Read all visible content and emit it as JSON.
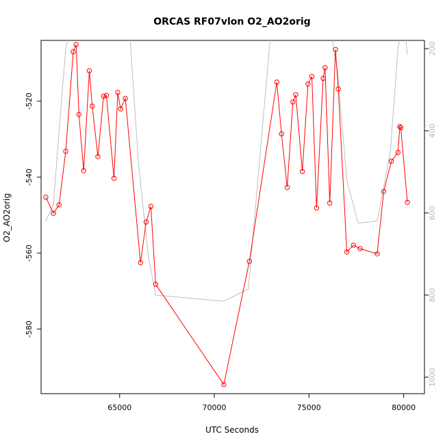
{
  "chart_data": {
    "type": "line",
    "title": "ORCAS RF07vlon O2_AO2orig",
    "xlabel": "UTC Seconds",
    "ylabel": "O2_AO2orig",
    "xlim": [
      60850,
      81100
    ],
    "ylim": [
      -597,
      -504
    ],
    "x_ticks": [
      65000,
      70000,
      75000,
      80000
    ],
    "y_ticks": [
      -520,
      -540,
      -560,
      -580
    ],
    "y2lim": [
      1040,
      180
    ],
    "y2_ticks": [
      200,
      400,
      600,
      800,
      1000
    ],
    "grid": false,
    "colors": {
      "primary": "#ff0000",
      "secondary": "#bebebe"
    },
    "series": [
      {
        "axis": "left",
        "color": "#ff0000",
        "marker": "open-circle",
        "points": [
          [
            61100,
            -545.3
          ],
          [
            61500,
            -549.5
          ],
          [
            61800,
            -547.3
          ],
          [
            62150,
            -533.2
          ],
          [
            62550,
            -507.0
          ],
          [
            62700,
            -505.1
          ],
          [
            62850,
            -523.5
          ],
          [
            63100,
            -538.3
          ],
          [
            63400,
            -512.0
          ],
          [
            63550,
            -521.3
          ],
          [
            63850,
            -534.6
          ],
          [
            64150,
            -518.7
          ],
          [
            64300,
            -518.5
          ],
          [
            64700,
            -540.3
          ],
          [
            64900,
            -517.7
          ],
          [
            65050,
            -522.0
          ],
          [
            65300,
            -519.3
          ],
          [
            66100,
            -562.5
          ],
          [
            66400,
            -551.8
          ],
          [
            66650,
            -547.7
          ],
          [
            66900,
            -568.2
          ],
          [
            70500,
            -594.6
          ],
          [
            71850,
            -562.2
          ],
          [
            73300,
            -515.0
          ],
          [
            73550,
            -528.6
          ],
          [
            73850,
            -542.7
          ],
          [
            74150,
            -520.2
          ],
          [
            74300,
            -518.3
          ],
          [
            74650,
            -538.5
          ],
          [
            74950,
            -515.5
          ],
          [
            75150,
            -513.5
          ],
          [
            75400,
            -548.1
          ],
          [
            75750,
            -514.0
          ],
          [
            75850,
            -511.2
          ],
          [
            76100,
            -546.8
          ],
          [
            76400,
            -506.4
          ],
          [
            76550,
            -516.8
          ],
          [
            77000,
            -559.7
          ],
          [
            77350,
            -557.9
          ],
          [
            77700,
            -558.8
          ],
          [
            78600,
            -560.2
          ],
          [
            78950,
            -543.8
          ],
          [
            79350,
            -535.8
          ],
          [
            79700,
            -533.5
          ],
          [
            79800,
            -526.7
          ],
          [
            79850,
            -527.0
          ],
          [
            80200,
            -546.6
          ]
        ]
      },
      {
        "axis": "right",
        "color": "#bebebe",
        "marker": "none",
        "points": [
          [
            61100,
            620
          ],
          [
            61500,
            580
          ],
          [
            61800,
            400
          ],
          [
            62150,
            200
          ],
          [
            62500,
            140
          ],
          [
            63000,
            120
          ],
          [
            64000,
            120
          ],
          [
            65000,
            120
          ],
          [
            65500,
            140
          ],
          [
            66000,
            480
          ],
          [
            66500,
            700
          ],
          [
            66900,
            800
          ],
          [
            70500,
            815
          ],
          [
            71800,
            785
          ],
          [
            73000,
            150
          ],
          [
            73300,
            120
          ],
          [
            74000,
            120
          ],
          [
            75000,
            120
          ],
          [
            76000,
            120
          ],
          [
            76500,
            250
          ],
          [
            77000,
            520
          ],
          [
            77600,
            625
          ],
          [
            78600,
            620
          ],
          [
            79300,
            450
          ],
          [
            79700,
            200
          ],
          [
            80000,
            130
          ],
          [
            80200,
            215
          ]
        ]
      }
    ]
  }
}
